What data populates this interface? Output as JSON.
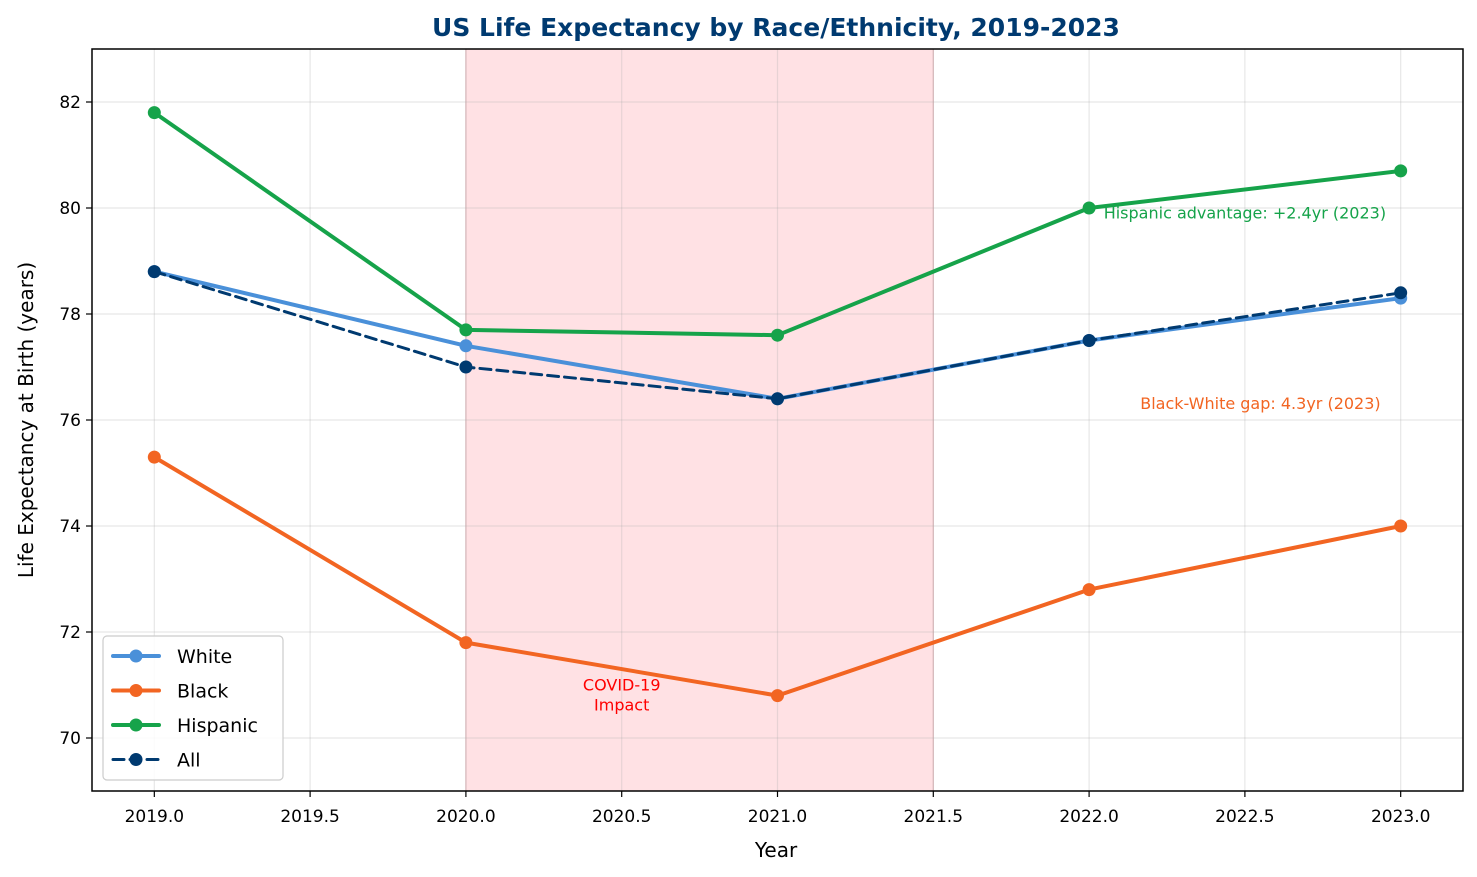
{
  "chart_data": {
    "type": "line",
    "title": "US Life Expectancy by Race/Ethnicity, 2019-2023",
    "xlabel": "Year",
    "ylabel": "Life Expectancy at Birth (years)",
    "x": [
      2019,
      2020,
      2021,
      2022,
      2023
    ],
    "xlim": [
      2018.8,
      2023.2
    ],
    "ylim": [
      69,
      83
    ],
    "xticks": [
      2019.0,
      2019.5,
      2020.0,
      2020.5,
      2021.0,
      2021.5,
      2022.0,
      2022.5,
      2023.0
    ],
    "xtick_labels": [
      "2019.0",
      "2019.5",
      "2020.0",
      "2020.5",
      "2021.0",
      "2021.5",
      "2022.0",
      "2022.5",
      "2023.0"
    ],
    "yticks": [
      70,
      72,
      74,
      76,
      78,
      80,
      82
    ],
    "ytick_labels": [
      "70",
      "72",
      "74",
      "76",
      "78",
      "80",
      "82"
    ],
    "grid": true,
    "legend_position": "lower-left",
    "series": [
      {
        "name": "White",
        "values": [
          78.8,
          77.4,
          76.4,
          77.5,
          78.3
        ],
        "color": "#4a90d9",
        "dashed": false
      },
      {
        "name": "Black",
        "values": [
          75.3,
          71.8,
          70.8,
          72.8,
          74.0
        ],
        "color": "#f26522",
        "dashed": false
      },
      {
        "name": "Hispanic",
        "values": [
          81.8,
          77.7,
          77.6,
          80.0,
          80.7
        ],
        "color": "#16a34a",
        "dashed": false
      },
      {
        "name": "All",
        "values": [
          78.8,
          77.0,
          76.4,
          77.5,
          78.4
        ],
        "color": "#003a70",
        "dashed": true
      }
    ],
    "shaded_region": {
      "x_start": 2020.0,
      "x_end": 2021.5,
      "color": "#ffe1e4",
      "label_lines": [
        "COVID-19",
        "Impact"
      ],
      "label_color": "#ff0000",
      "label_x": 2020.5,
      "label_y": 70.9
    },
    "annotations": [
      {
        "id": "hispanic-advantage",
        "text": "Hispanic advantage: +2.4yr (2023)",
        "x": 2022.5,
        "y": 79.9,
        "color": "#16a34a"
      },
      {
        "id": "black-white-gap",
        "text": "Black-White gap: 4.3yr (2023)",
        "x": 2022.55,
        "y": 76.3,
        "color": "#f26522"
      }
    ],
    "title_color": "#003a70"
  }
}
